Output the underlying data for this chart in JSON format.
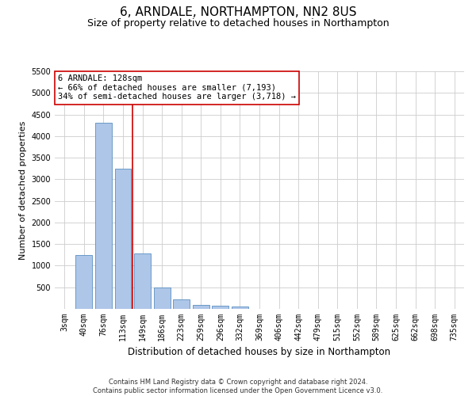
{
  "title": "6, ARNDALE, NORTHAMPTON, NN2 8US",
  "subtitle": "Size of property relative to detached houses in Northampton",
  "xlabel": "Distribution of detached houses by size in Northampton",
  "ylabel": "Number of detached properties",
  "footer_line1": "Contains HM Land Registry data © Crown copyright and database right 2024.",
  "footer_line2": "Contains public sector information licensed under the Open Government Licence v3.0.",
  "annotation_line1": "6 ARNDALE: 128sqm",
  "annotation_line2": "← 66% of detached houses are smaller (7,193)",
  "annotation_line3": "34% of semi-detached houses are larger (3,718) →",
  "categories": [
    "3sqm",
    "40sqm",
    "76sqm",
    "113sqm",
    "149sqm",
    "186sqm",
    "223sqm",
    "259sqm",
    "296sqm",
    "332sqm",
    "369sqm",
    "406sqm",
    "442sqm",
    "479sqm",
    "515sqm",
    "552sqm",
    "589sqm",
    "625sqm",
    "662sqm",
    "698sqm",
    "735sqm"
  ],
  "values": [
    0,
    1250,
    4300,
    3250,
    1280,
    490,
    215,
    100,
    75,
    60,
    0,
    0,
    0,
    0,
    0,
    0,
    0,
    0,
    0,
    0,
    0
  ],
  "bar_color": "#aec6e8",
  "bar_edge_color": "#5a8fc0",
  "vline_color": "#cc0000",
  "annotation_box_color": "#cc0000",
  "ylim": [
    0,
    5500
  ],
  "yticks": [
    0,
    500,
    1000,
    1500,
    2000,
    2500,
    3000,
    3500,
    4000,
    4500,
    5000,
    5500
  ],
  "grid_color": "#cccccc",
  "background_color": "#ffffff",
  "title_fontsize": 11,
  "subtitle_fontsize": 9,
  "ylabel_fontsize": 8,
  "xlabel_fontsize": 8.5,
  "tick_fontsize": 7,
  "annotation_fontsize": 7.5,
  "footer_fontsize": 6
}
